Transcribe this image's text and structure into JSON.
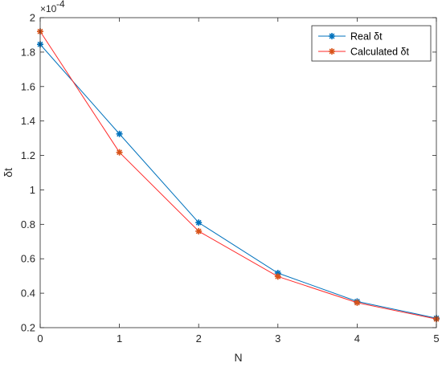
{
  "chart_data": {
    "type": "line",
    "xlabel": "N",
    "ylabel": "δt",
    "y_exponent_base": "×10",
    "y_exponent_power": "-4",
    "xlim": [
      0,
      5
    ],
    "ylim": [
      0.2,
      2
    ],
    "x_ticks": [
      "0",
      "1",
      "2",
      "3",
      "4",
      "5"
    ],
    "y_ticks": [
      "0.2",
      "0.4",
      "0.6",
      "0.8",
      "1",
      "1.2",
      "1.4",
      "1.6",
      "1.8",
      "2"
    ],
    "legend_position": "top-right",
    "grid": false,
    "x": [
      0,
      1,
      2,
      3,
      4,
      5
    ],
    "series": [
      {
        "name": "Real δt",
        "color": "#0072BD",
        "marker_color": "#0072BD",
        "values": [
          1.845,
          1.325,
          0.81,
          0.517,
          0.352,
          0.255
        ]
      },
      {
        "name": "Calculated δt",
        "color": "#FF2A2A",
        "marker_color": "#D95319",
        "values": [
          1.92,
          1.218,
          0.76,
          0.497,
          0.345,
          0.25
        ]
      }
    ]
  }
}
